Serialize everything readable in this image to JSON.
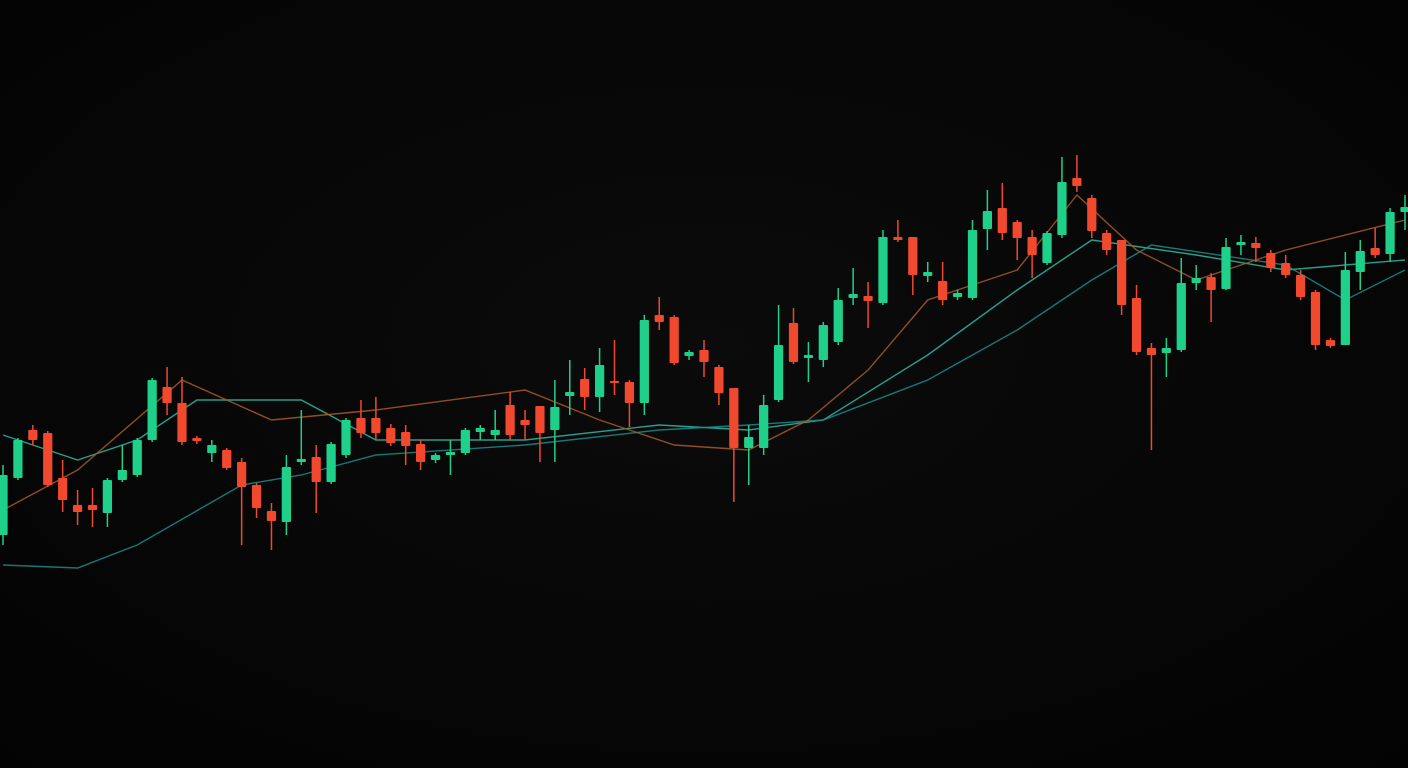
{
  "chart_data": {
    "type": "candlestick",
    "up_color": "#1fd08a",
    "down_color": "#f0492e",
    "xlim": [
      0,
      94
    ],
    "ylim": [
      0,
      768
    ],
    "open": [
      233,
      290,
      338,
      335,
      290,
      263,
      263,
      255,
      288,
      293,
      328,
      381,
      365,
      330,
      315,
      318,
      306,
      283,
      257,
      246,
      306,
      311,
      286,
      313,
      350,
      350,
      340,
      336,
      324,
      308,
      313,
      315,
      336,
      333,
      363,
      348,
      362,
      338,
      372,
      389,
      371,
      387,
      386,
      365,
      453,
      451,
      412,
      418,
      401,
      380,
      320,
      320,
      368,
      445,
      410,
      408,
      426,
      470,
      472,
      465,
      531,
      531,
      492,
      487,
      471,
      470,
      539,
      560,
      546,
      531,
      505,
      533,
      590,
      570,
      535,
      528,
      470,
      420,
      415,
      418,
      485,
      491,
      479,
      523,
      525,
      515,
      505,
      493,
      476,
      428,
      423,
      496,
      520,
      514,
      556
    ],
    "high": [
      303,
      330,
      343,
      337,
      308,
      278,
      280,
      290,
      323,
      330,
      390,
      401,
      391,
      332,
      328,
      320,
      310,
      285,
      265,
      313,
      358,
      323,
      326,
      350,
      368,
      371,
      344,
      343,
      328,
      315,
      328,
      340,
      343,
      358,
      376,
      358,
      362,
      388,
      408,
      400,
      420,
      428,
      388,
      453,
      471,
      453,
      418,
      428,
      403,
      380,
      343,
      373,
      463,
      460,
      426,
      446,
      480,
      500,
      486,
      538,
      548,
      531,
      506,
      506,
      478,
      548,
      578,
      585,
      548,
      538,
      537,
      611,
      613,
      573,
      538,
      528,
      483,
      425,
      430,
      510,
      503,
      495,
      530,
      533,
      531,
      518,
      513,
      498,
      478,
      430,
      516,
      528,
      540,
      560,
      573
    ],
    "low": [
      223,
      288,
      323,
      281,
      256,
      243,
      241,
      241,
      286,
      291,
      326,
      353,
      323,
      324,
      306,
      298,
      223,
      250,
      218,
      233,
      303,
      255,
      284,
      310,
      330,
      328,
      322,
      303,
      298,
      305,
      293,
      313,
      328,
      328,
      328,
      328,
      306,
      306,
      353,
      358,
      356,
      373,
      341,
      353,
      438,
      403,
      408,
      391,
      363,
      266,
      283,
      313,
      366,
      404,
      386,
      401,
      423,
      463,
      440,
      463,
      526,
      473,
      486,
      463,
      468,
      468,
      518,
      528,
      508,
      490,
      503,
      530,
      576,
      530,
      513,
      453,
      413,
      318,
      391,
      416,
      478,
      446,
      478,
      513,
      506,
      496,
      490,
      468,
      418,
      420,
      423,
      478,
      510,
      506,
      538
    ],
    "close": [
      293,
      328,
      328,
      283,
      268,
      256,
      258,
      288,
      298,
      328,
      388,
      365,
      326,
      327,
      323,
      300,
      281,
      260,
      247,
      301,
      309,
      286,
      324,
      348,
      335,
      335,
      325,
      322,
      306,
      313,
      316,
      338,
      340,
      338,
      333,
      343,
      335,
      361,
      376,
      371,
      403,
      385,
      365,
      448,
      446,
      405,
      416,
      406,
      375,
      320,
      331,
      363,
      423,
      406,
      413,
      443,
      468,
      474,
      467,
      531,
      528,
      493,
      496,
      468,
      475,
      538,
      557,
      535,
      530,
      513,
      535,
      586,
      582,
      537,
      518,
      463,
      416,
      413,
      420,
      485,
      490,
      478,
      521,
      526,
      520,
      500,
      493,
      471,
      423,
      422,
      498,
      517,
      513,
      556,
      561
    ],
    "lines": [
      {
        "color": "#2fb8a6",
        "x": [
          0,
          5,
          9,
          13,
          20,
          25,
          35,
          44,
          50,
          55,
          62,
          68,
          73,
          80,
          86,
          94
        ],
        "values": [
          333,
          308,
          328,
          368,
          368,
          328,
          328,
          343,
          338,
          348,
          413,
          478,
          528,
          513,
          498,
          508
        ]
      },
      {
        "color": "#1a8d8b",
        "x": [
          0,
          5,
          9,
          16,
          20,
          25,
          35,
          44,
          50,
          55,
          62,
          68,
          73,
          77,
          86,
          90,
          94
        ],
        "values": [
          203,
          200,
          223,
          283,
          293,
          313,
          323,
          338,
          343,
          348,
          388,
          438,
          488,
          523,
          503,
          468,
          498
        ]
      },
      {
        "color": "#a85a28",
        "x": [
          0,
          5,
          12,
          18,
          25,
          35,
          40,
          45,
          50,
          54,
          58,
          62,
          68,
          72,
          76,
          80,
          86,
          94
        ],
        "values": [
          258,
          298,
          388,
          348,
          358,
          378,
          348,
          323,
          318,
          348,
          398,
          468,
          498,
          573,
          518,
          488,
          518,
          548
        ]
      }
    ]
  }
}
